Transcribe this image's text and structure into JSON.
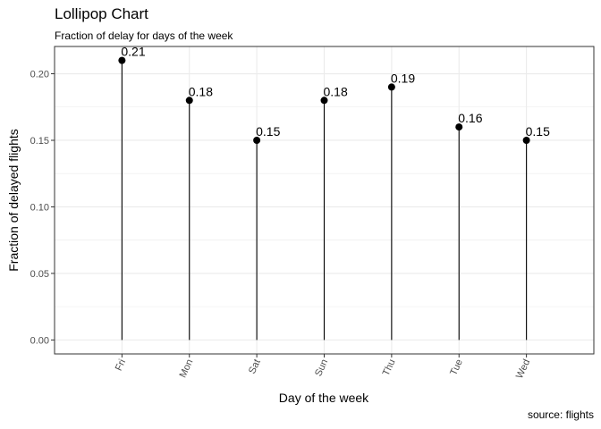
{
  "title": "Lollipop Chart",
  "subtitle": "Fraction of delay for days of the week",
  "caption": "source: flights",
  "chart_data": {
    "type": "lollipop",
    "categories": [
      "Fri",
      "Mon",
      "Sat",
      "Sun",
      "Thu",
      "Tue",
      "Wed"
    ],
    "values": [
      0.21,
      0.18,
      0.15,
      0.18,
      0.19,
      0.16,
      0.15
    ],
    "data_labels": [
      "0.21",
      "0.18",
      "0.15",
      "0.18",
      "0.19",
      "0.16",
      "0.15"
    ],
    "xlabel": "Day of the week",
    "ylabel": "Fraction of delayed flights",
    "yticks": [
      "0.00",
      "0.05",
      "0.10",
      "0.15",
      "0.20"
    ],
    "ylim": [
      -0.0105,
      0.2205
    ],
    "grid": true,
    "legend": "none",
    "point_color": "#000000",
    "stem_color": "#000000",
    "grid_color": "#ebebeb"
  }
}
